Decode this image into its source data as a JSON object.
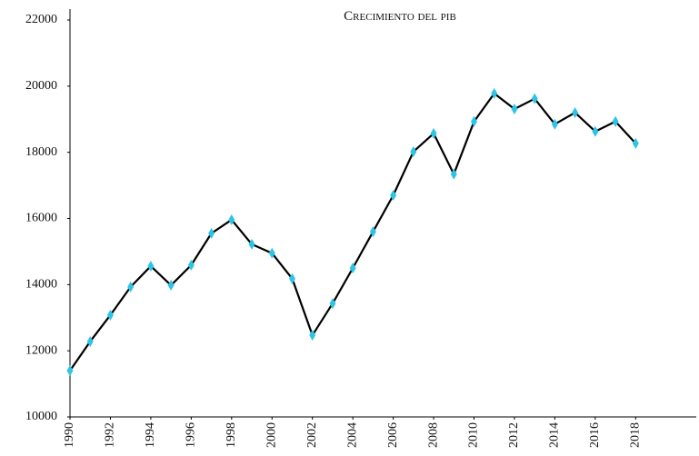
{
  "chart_data": {
    "type": "line",
    "title": "Crecimiento del pib",
    "x": [
      1990,
      1991,
      1992,
      1993,
      1994,
      1995,
      1996,
      1997,
      1998,
      1999,
      2000,
      2001,
      2002,
      2003,
      2004,
      2005,
      2006,
      2007,
      2008,
      2009,
      2010,
      2011,
      2012,
      2013,
      2014,
      2015,
      2016,
      2017,
      2018
    ],
    "series": [
      {
        "color": "#000000",
        "marker_color": "#2ec4e6",
        "values": [
          11400,
          12280,
          13080,
          13930,
          14560,
          13980,
          14590,
          15550,
          15960,
          15220,
          14950,
          14180,
          12470,
          13430,
          14500,
          15600,
          16700,
          18020,
          18570,
          17340,
          18930,
          19780,
          19310,
          19620,
          18850,
          19200,
          18630,
          18930,
          18270
        ]
      }
    ],
    "xlim": [
      1990,
      2021
    ],
    "xticks": [
      1990,
      1992,
      1994,
      1996,
      1998,
      2000,
      2002,
      2004,
      2006,
      2008,
      2010,
      2012,
      2014,
      2016,
      2018
    ],
    "ylim": [
      10000,
      22000
    ],
    "yticks": [
      10000,
      12000,
      14000,
      16000,
      18000,
      20000,
      22000
    ],
    "grid": false
  }
}
